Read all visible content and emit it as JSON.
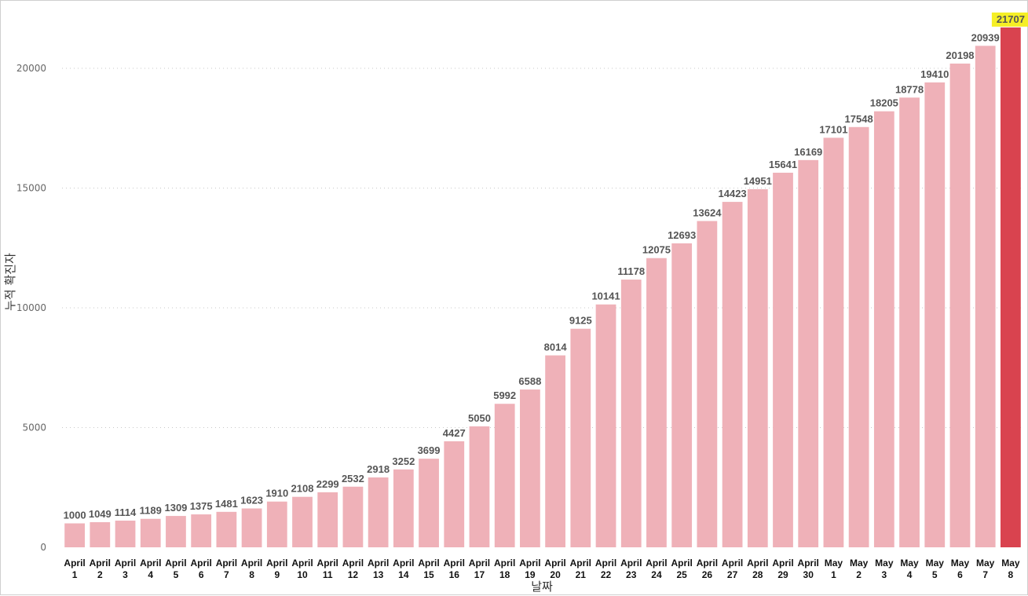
{
  "chart_data": {
    "type": "bar",
    "xlabel": "날짜",
    "ylabel": "누적 확진자",
    "ylim": [
      0,
      22000
    ],
    "yticks": [
      0,
      5000,
      10000,
      15000,
      20000
    ],
    "grid": "horizontal dotted",
    "colors": {
      "bar": "#efb1b8",
      "highlight_bar": "#d9434f",
      "highlight_label_bg": "#f5ef26"
    },
    "highlight_index": 37,
    "categories": [
      {
        "month": "April",
        "day": "1"
      },
      {
        "month": "April",
        "day": "2"
      },
      {
        "month": "April",
        "day": "3"
      },
      {
        "month": "April",
        "day": "4"
      },
      {
        "month": "April",
        "day": "5"
      },
      {
        "month": "April",
        "day": "6"
      },
      {
        "month": "April",
        "day": "7"
      },
      {
        "month": "April",
        "day": "8"
      },
      {
        "month": "April",
        "day": "9"
      },
      {
        "month": "April",
        "day": "10"
      },
      {
        "month": "April",
        "day": "11"
      },
      {
        "month": "April",
        "day": "12"
      },
      {
        "month": "April",
        "day": "13"
      },
      {
        "month": "April",
        "day": "14"
      },
      {
        "month": "April",
        "day": "15"
      },
      {
        "month": "April",
        "day": "16"
      },
      {
        "month": "April",
        "day": "17"
      },
      {
        "month": "April",
        "day": "18"
      },
      {
        "month": "April",
        "day": "19"
      },
      {
        "month": "April",
        "day": "20"
      },
      {
        "month": "April",
        "day": "21"
      },
      {
        "month": "April",
        "day": "22"
      },
      {
        "month": "April",
        "day": "23"
      },
      {
        "month": "April",
        "day": "24"
      },
      {
        "month": "April",
        "day": "25"
      },
      {
        "month": "April",
        "day": "26"
      },
      {
        "month": "April",
        "day": "27"
      },
      {
        "month": "April",
        "day": "28"
      },
      {
        "month": "April",
        "day": "29"
      },
      {
        "month": "April",
        "day": "30"
      },
      {
        "month": "May",
        "day": "1"
      },
      {
        "month": "May",
        "day": "2"
      },
      {
        "month": "May",
        "day": "3"
      },
      {
        "month": "May",
        "day": "4"
      },
      {
        "month": "May",
        "day": "5"
      },
      {
        "month": "May",
        "day": "6"
      },
      {
        "month": "May",
        "day": "7"
      },
      {
        "month": "May",
        "day": "8"
      }
    ],
    "values": [
      1000,
      1049,
      1114,
      1189,
      1309,
      1375,
      1481,
      1623,
      1910,
      2108,
      2299,
      2532,
      2918,
      3252,
      3699,
      4427,
      5050,
      5992,
      6588,
      8014,
      9125,
      10141,
      11178,
      12075,
      12693,
      13624,
      14423,
      14951,
      15641,
      16169,
      17101,
      17548,
      18205,
      18778,
      19410,
      20198,
      20939,
      21707
    ]
  }
}
